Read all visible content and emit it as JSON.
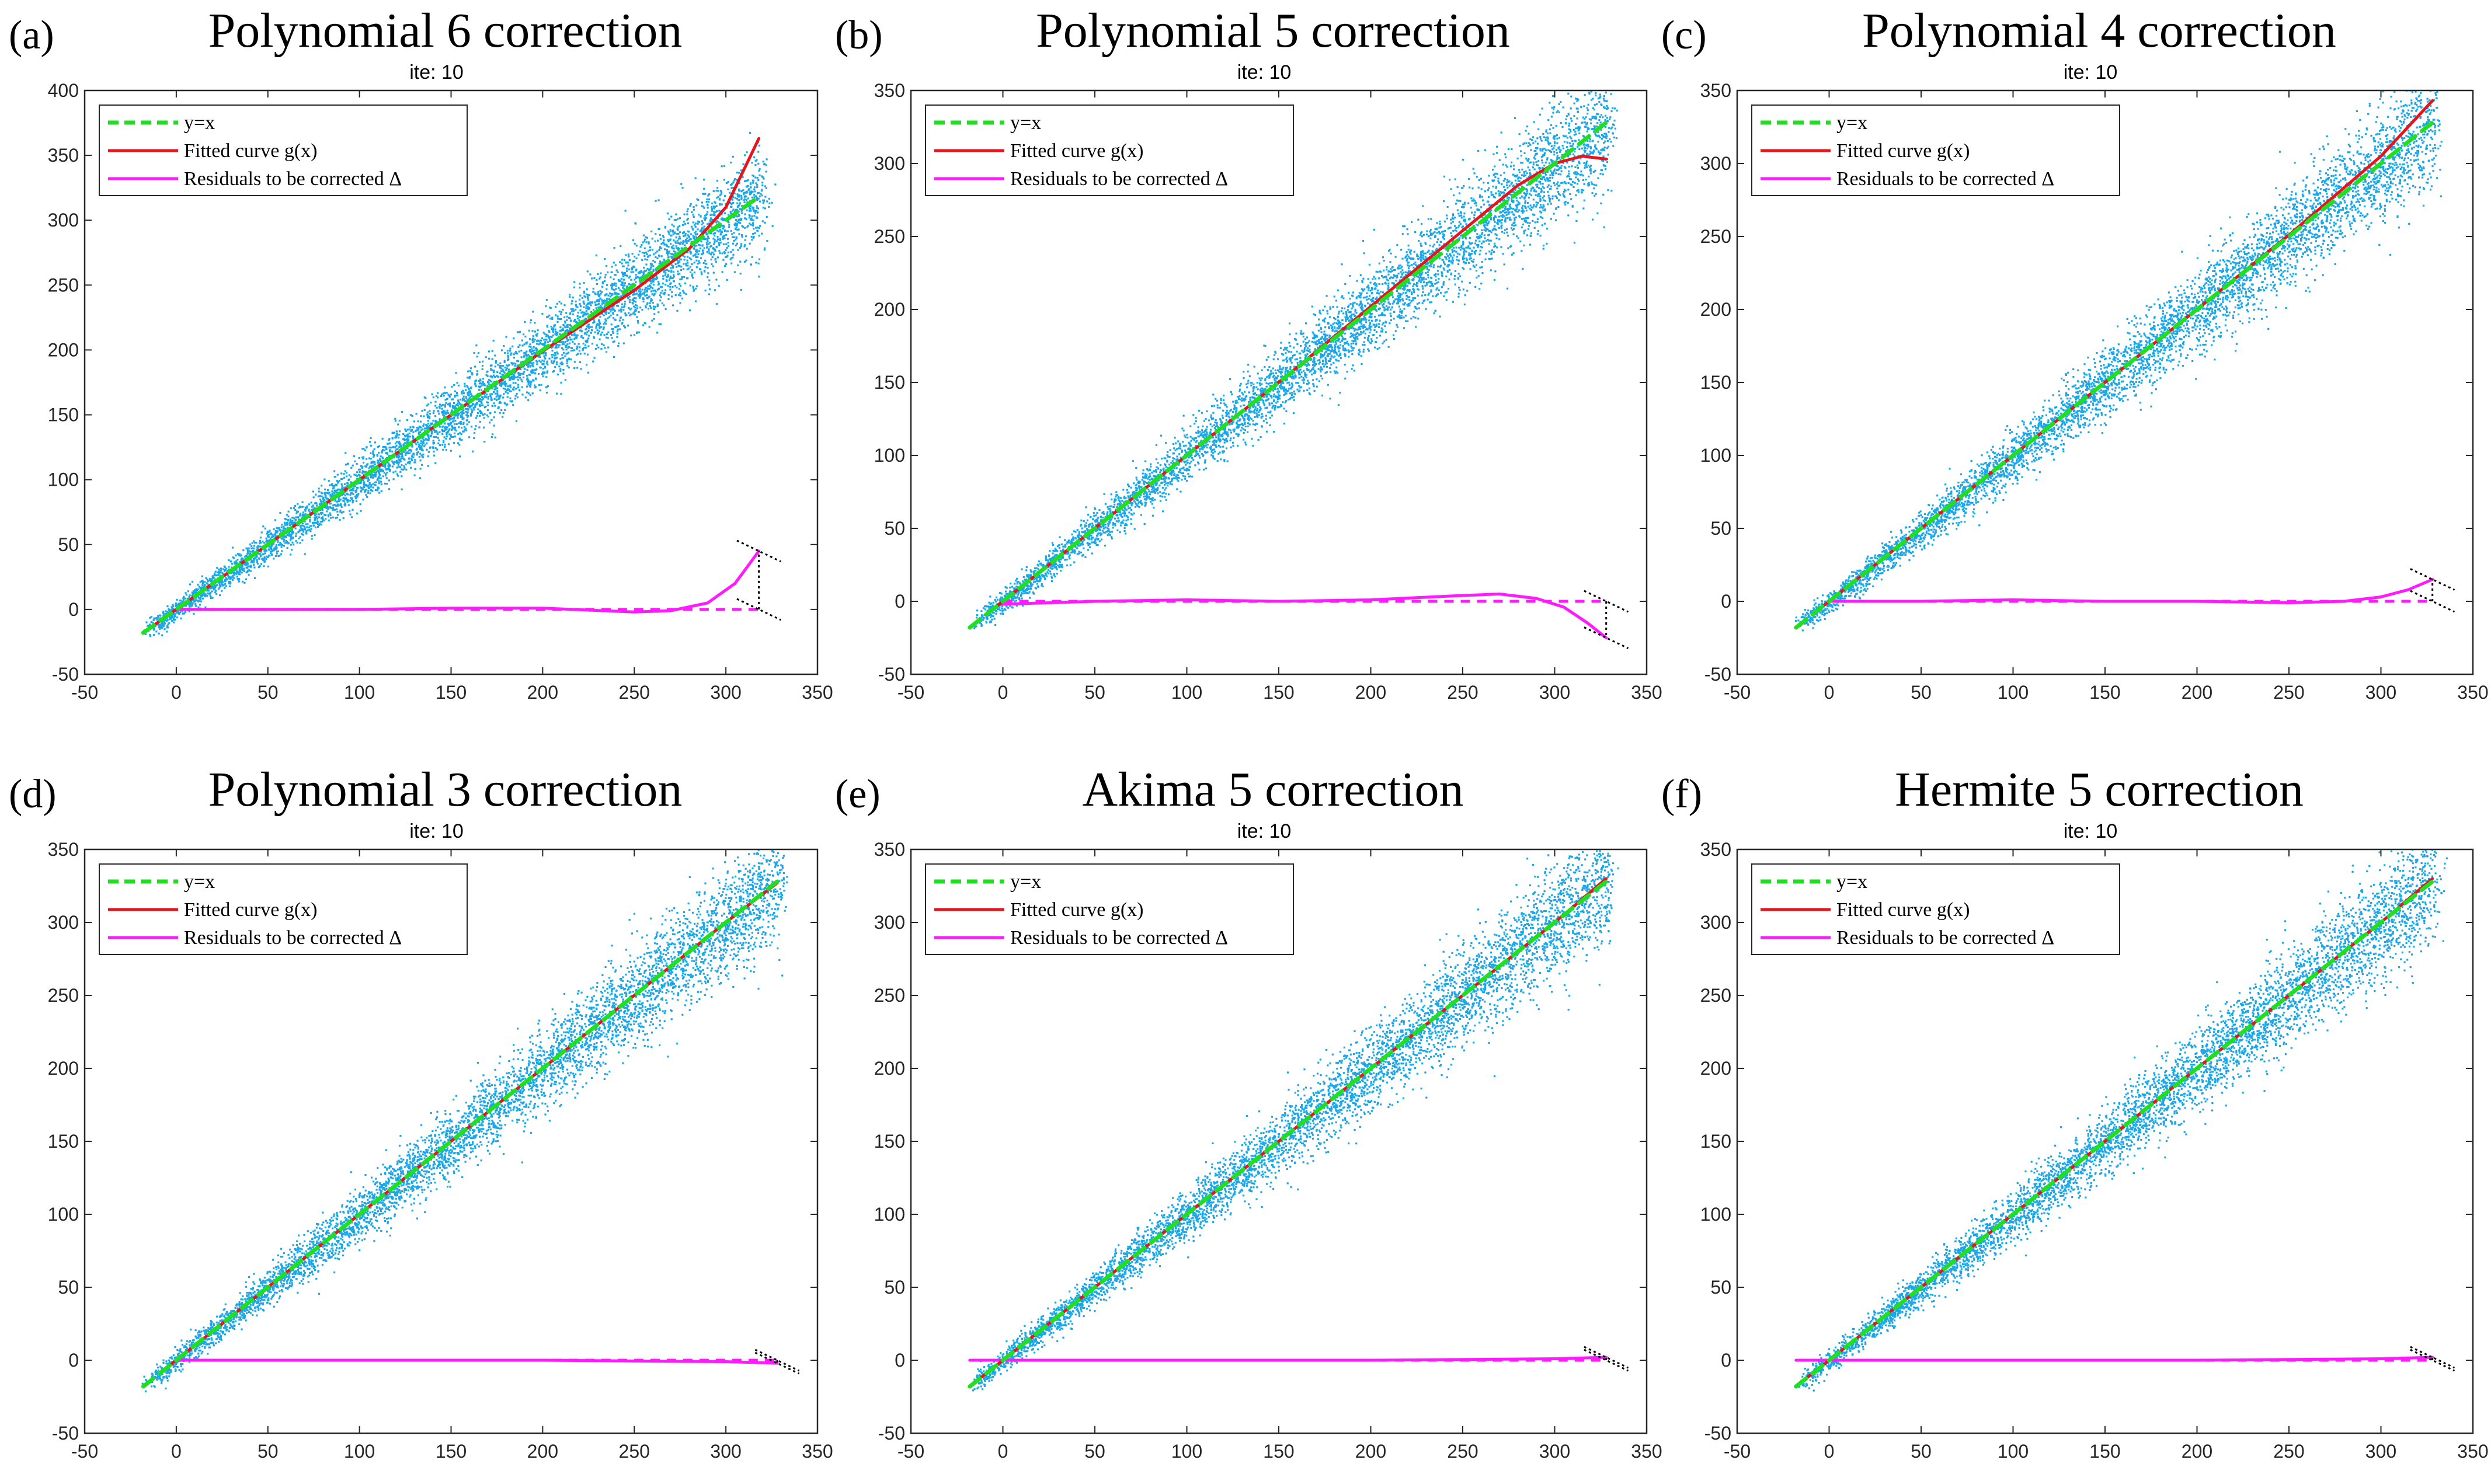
{
  "colors": {
    "scatter": "#1aa7e8",
    "identity": "#22dd22",
    "fitted": "#e8141c",
    "residual": "#ff1aff",
    "annotation": "#000000",
    "axes": "#262626"
  },
  "chart_data": [
    {
      "type": "scatter",
      "panel_label": "(a)",
      "title": "Polynomial 6 correction",
      "subtitle": "ite: 10",
      "xlim": [
        -50,
        350
      ],
      "ylim": [
        -50,
        400
      ],
      "xticks": [
        -50,
        0,
        50,
        100,
        150,
        200,
        250,
        300,
        350
      ],
      "yticks": [
        -50,
        0,
        50,
        100,
        150,
        200,
        250,
        300,
        350,
        400
      ],
      "legend": [
        "y=x",
        "Fitted curve g(x)",
        "Residuals to be corrected Δ"
      ],
      "legend_position": "top-left",
      "scatter_x_range": [
        -15,
        320
      ],
      "identity_line": {
        "x": [
          -18,
          318
        ],
        "y": [
          -18,
          318
        ]
      },
      "fitted_curve": {
        "x": [
          -15,
          0,
          50,
          100,
          150,
          200,
          250,
          280,
          300,
          318
        ],
        "y": [
          -15,
          0,
          50,
          100,
          150,
          199,
          246,
          278,
          310,
          363
        ]
      },
      "residual_curve": {
        "x": [
          0,
          50,
          100,
          150,
          200,
          250,
          270,
          290,
          305,
          318
        ],
        "y": [
          0,
          0,
          0,
          1,
          1,
          -2,
          -1,
          5,
          20,
          45
        ]
      }
    },
    {
      "type": "scatter",
      "panel_label": "(b)",
      "title": "Polynomial 5 correction",
      "subtitle": "ite: 10",
      "xlim": [
        -50,
        350
      ],
      "ylim": [
        -50,
        350
      ],
      "xticks": [
        -50,
        0,
        50,
        100,
        150,
        200,
        250,
        300,
        350
      ],
      "yticks": [
        -50,
        0,
        50,
        100,
        150,
        200,
        250,
        300,
        350
      ],
      "legend": [
        "y=x",
        "Fitted curve g(x)",
        "Residuals to be corrected Δ"
      ],
      "legend_position": "top-left",
      "scatter_x_range": [
        -15,
        330
      ],
      "identity_line": {
        "x": [
          -18,
          328
        ],
        "y": [
          -18,
          328
        ]
      },
      "fitted_curve": {
        "x": [
          -5,
          0,
          50,
          100,
          150,
          200,
          250,
          280,
          300,
          315,
          328
        ],
        "y": [
          -5,
          0,
          50,
          100,
          150,
          202,
          254,
          285,
          300,
          305,
          303
        ]
      },
      "residual_curve": {
        "x": [
          0,
          50,
          100,
          150,
          200,
          250,
          270,
          290,
          305,
          318,
          328
        ],
        "y": [
          -2,
          0,
          1,
          0,
          1,
          4,
          5,
          2,
          -4,
          -15,
          -25
        ]
      }
    },
    {
      "type": "scatter",
      "panel_label": "(c)",
      "title": "Polynomial 4 correction",
      "subtitle": "ite: 10",
      "xlim": [
        -50,
        350
      ],
      "ylim": [
        -50,
        350
      ],
      "xticks": [
        -50,
        0,
        50,
        100,
        150,
        200,
        250,
        300,
        350
      ],
      "yticks": [
        -50,
        0,
        50,
        100,
        150,
        200,
        250,
        300,
        350
      ],
      "legend": [
        "y=x",
        "Fitted curve g(x)",
        "Residuals to be corrected Δ"
      ],
      "legend_position": "top-left",
      "scatter_x_range": [
        -15,
        330
      ],
      "identity_line": {
        "x": [
          -18,
          328
        ],
        "y": [
          -18,
          328
        ]
      },
      "fitted_curve": {
        "x": [
          -5,
          0,
          50,
          100,
          150,
          200,
          250,
          300,
          328
        ],
        "y": [
          -5,
          0,
          50,
          100,
          150,
          200,
          251,
          305,
          343
        ]
      },
      "residual_curve": {
        "x": [
          0,
          50,
          100,
          150,
          200,
          250,
          280,
          300,
          315,
          328
        ],
        "y": [
          0,
          0,
          1,
          0,
          0,
          -1,
          0,
          3,
          8,
          15
        ]
      }
    },
    {
      "type": "scatter",
      "panel_label": "(d)",
      "title": "Polynomial 3 correction",
      "subtitle": "ite: 10",
      "xlim": [
        -50,
        350
      ],
      "ylim": [
        -50,
        350
      ],
      "xticks": [
        -50,
        0,
        50,
        100,
        150,
        200,
        250,
        300,
        350
      ],
      "yticks": [
        -50,
        0,
        50,
        100,
        150,
        200,
        250,
        300,
        350
      ],
      "legend": [
        "y=x",
        "Fitted curve g(x)",
        "Residuals to be corrected Δ"
      ],
      "legend_position": "top-left",
      "scatter_x_range": [
        -15,
        330
      ],
      "identity_line": {
        "x": [
          -18,
          328
        ],
        "y": [
          -18,
          328
        ]
      },
      "fitted_curve": {
        "x": [
          -5,
          0,
          100,
          200,
          300,
          328
        ],
        "y": [
          -5,
          0,
          100,
          200,
          300,
          327
        ]
      },
      "residual_curve": {
        "x": [
          0,
          100,
          200,
          300,
          328
        ],
        "y": [
          0,
          0,
          0,
          -1,
          -2
        ]
      }
    },
    {
      "type": "scatter",
      "panel_label": "(e)",
      "title": "Akima 5 correction",
      "subtitle": "ite: 10",
      "xlim": [
        -50,
        350
      ],
      "ylim": [
        -50,
        350
      ],
      "xticks": [
        -50,
        0,
        50,
        100,
        150,
        200,
        250,
        300,
        350
      ],
      "yticks": [
        -50,
        0,
        50,
        100,
        150,
        200,
        250,
        300,
        350
      ],
      "legend": [
        "y=x",
        "Fitted curve g(x)",
        "Residuals to be corrected Δ"
      ],
      "legend_position": "top-left",
      "scatter_x_range": [
        -15,
        330
      ],
      "identity_line": {
        "x": [
          -18,
          328
        ],
        "y": [
          -18,
          328
        ]
      },
      "fitted_curve": {
        "x": [
          -18,
          0,
          100,
          200,
          300,
          328
        ],
        "y": [
          -18,
          0,
          100,
          200,
          300,
          330
        ]
      },
      "residual_curve": {
        "x": [
          -18,
          0,
          100,
          200,
          300,
          328
        ],
        "y": [
          0,
          0,
          0,
          0,
          1,
          2
        ]
      }
    },
    {
      "type": "scatter",
      "panel_label": "(f)",
      "title": "Hermite 5 correction",
      "subtitle": "ite: 10",
      "xlim": [
        -50,
        350
      ],
      "ylim": [
        -50,
        350
      ],
      "xticks": [
        -50,
        0,
        50,
        100,
        150,
        200,
        250,
        300,
        350
      ],
      "yticks": [
        -50,
        0,
        50,
        100,
        150,
        200,
        250,
        300,
        350
      ],
      "legend": [
        "y=x",
        "Fitted curve g(x)",
        "Residuals to be corrected Δ"
      ],
      "legend_position": "top-left",
      "scatter_x_range": [
        -15,
        330
      ],
      "identity_line": {
        "x": [
          -18,
          328
        ],
        "y": [
          -18,
          328
        ]
      },
      "fitted_curve": {
        "x": [
          -18,
          0,
          100,
          200,
          300,
          328
        ],
        "y": [
          -18,
          0,
          100,
          200,
          300,
          330
        ]
      },
      "residual_curve": {
        "x": [
          -18,
          0,
          100,
          200,
          300,
          328
        ],
        "y": [
          0,
          0,
          0,
          0,
          1,
          2
        ]
      }
    }
  ]
}
